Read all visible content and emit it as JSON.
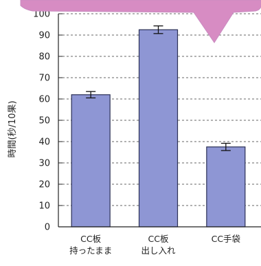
{
  "chart_data": {
    "type": "bar",
    "categories": [
      [
        "CC板",
        "持ったまま"
      ],
      [
        "CC板",
        "出し入れ"
      ],
      [
        "CC手袋"
      ]
    ],
    "values": [
      62,
      92.5,
      37.5
    ],
    "error": [
      1.5,
      1.8,
      1.7
    ],
    "ylabel": "時間(秒/10果)",
    "ylim": [
      0,
      100
    ],
    "yticks": [
      0,
      10,
      20,
      30,
      40,
      50,
      60,
      70,
      80,
      90,
      100
    ],
    "grid": true,
    "bar_color": "#8e96d4",
    "bar_edge": "#2a2f55",
    "callout_color": "#d78cc3"
  }
}
